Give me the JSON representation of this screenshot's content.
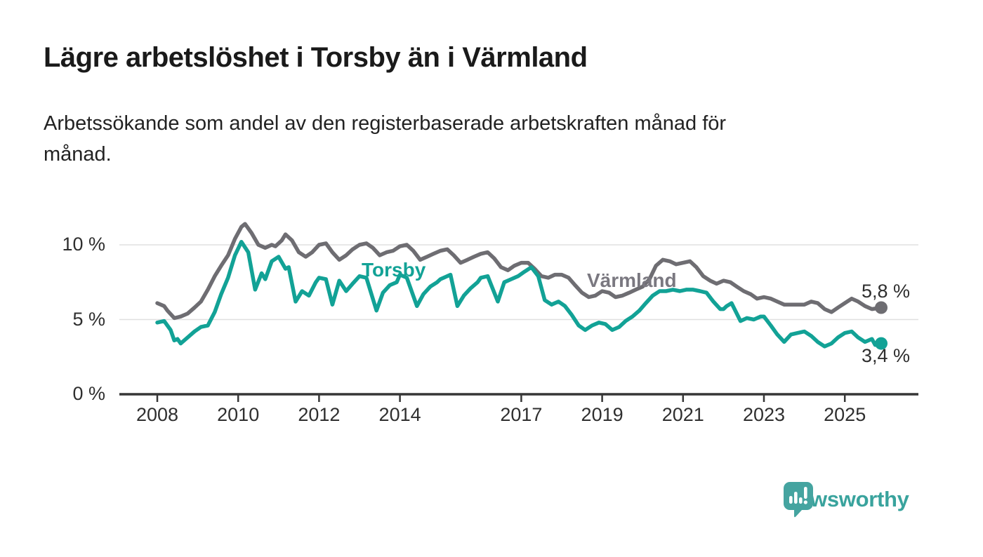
{
  "header": {
    "title": "Lägre arbetslöshet i Torsby än i Värmland",
    "subtitle_lines": [
      "Arbetssökande som andel av den registerbaserade arbetskraften månad för",
      "månad."
    ]
  },
  "colors": {
    "torsby": "#12a296",
    "varmland": "#6e6d72",
    "varmland_label": "#7a7880",
    "grid": "#e0e0e0",
    "axis": "#363636",
    "text": "#2f2f2f",
    "brand_teal": "#45a4a0"
  },
  "chart_data": {
    "type": "line",
    "title": "Lägre arbetslöshet i Torsby än i Värmland",
    "xlabel": "",
    "ylabel": "Arbetssökande som andel av den registerbaserade arbetskraften",
    "unit": "%",
    "grid": "horizontal",
    "x_ticks": [
      "2008",
      "2010",
      "2012",
      "2014",
      "2017",
      "2019",
      "2021",
      "2023",
      "2025"
    ],
    "x_tick_years": [
      2008,
      2010,
      2012,
      2014,
      2017,
      2019,
      2021,
      2023,
      2025
    ],
    "y_ticks": [
      {
        "value": 0,
        "label": "0 %"
      },
      {
        "value": 5,
        "label": "5 %"
      },
      {
        "value": 10,
        "label": "10 %"
      }
    ],
    "x_range": [
      2008.0,
      2025.9
    ],
    "y_range": [
      0,
      12.8
    ],
    "series": [
      {
        "name": "Värmland",
        "color": "#6e6d72",
        "end_label": "5,8 %",
        "end_value": 5.8,
        "points": [
          [
            2008.0,
            6.1
          ],
          [
            2008.17,
            5.9
          ],
          [
            2008.25,
            5.6
          ],
          [
            2008.42,
            5.1
          ],
          [
            2008.58,
            5.2
          ],
          [
            2008.75,
            5.4
          ],
          [
            2008.92,
            5.8
          ],
          [
            2009.08,
            6.2
          ],
          [
            2009.25,
            7.0
          ],
          [
            2009.42,
            7.9
          ],
          [
            2009.58,
            8.6
          ],
          [
            2009.75,
            9.3
          ],
          [
            2009.92,
            10.4
          ],
          [
            2010.08,
            11.2
          ],
          [
            2010.17,
            11.4
          ],
          [
            2010.33,
            10.8
          ],
          [
            2010.5,
            10.0
          ],
          [
            2010.67,
            9.8
          ],
          [
            2010.83,
            10.0
          ],
          [
            2010.92,
            9.9
          ],
          [
            2011.08,
            10.3
          ],
          [
            2011.17,
            10.7
          ],
          [
            2011.33,
            10.3
          ],
          [
            2011.5,
            9.5
          ],
          [
            2011.67,
            9.2
          ],
          [
            2011.83,
            9.5
          ],
          [
            2012.0,
            10.0
          ],
          [
            2012.17,
            10.1
          ],
          [
            2012.33,
            9.5
          ],
          [
            2012.5,
            9.0
          ],
          [
            2012.67,
            9.3
          ],
          [
            2012.83,
            9.7
          ],
          [
            2013.0,
            10.0
          ],
          [
            2013.17,
            10.1
          ],
          [
            2013.33,
            9.8
          ],
          [
            2013.5,
            9.3
          ],
          [
            2013.67,
            9.5
          ],
          [
            2013.83,
            9.6
          ],
          [
            2014.0,
            9.9
          ],
          [
            2014.17,
            10.0
          ],
          [
            2014.33,
            9.6
          ],
          [
            2014.5,
            9.0
          ],
          [
            2014.67,
            9.2
          ],
          [
            2014.83,
            9.4
          ],
          [
            2015.0,
            9.6
          ],
          [
            2015.17,
            9.7
          ],
          [
            2015.33,
            9.3
          ],
          [
            2015.5,
            8.8
          ],
          [
            2015.67,
            9.0
          ],
          [
            2015.83,
            9.2
          ],
          [
            2016.0,
            9.4
          ],
          [
            2016.17,
            9.5
          ],
          [
            2016.33,
            9.1
          ],
          [
            2016.5,
            8.5
          ],
          [
            2016.67,
            8.3
          ],
          [
            2016.83,
            8.6
          ],
          [
            2017.0,
            8.8
          ],
          [
            2017.17,
            8.8
          ],
          [
            2017.33,
            8.4
          ],
          [
            2017.5,
            7.9
          ],
          [
            2017.67,
            7.8
          ],
          [
            2017.83,
            8.0
          ],
          [
            2018.0,
            8.0
          ],
          [
            2018.17,
            7.8
          ],
          [
            2018.33,
            7.3
          ],
          [
            2018.5,
            6.8
          ],
          [
            2018.67,
            6.5
          ],
          [
            2018.83,
            6.6
          ],
          [
            2019.0,
            6.9
          ],
          [
            2019.17,
            6.8
          ],
          [
            2019.33,
            6.5
          ],
          [
            2019.5,
            6.6
          ],
          [
            2019.67,
            6.8
          ],
          [
            2019.83,
            7.0
          ],
          [
            2020.0,
            7.2
          ],
          [
            2020.17,
            7.7
          ],
          [
            2020.33,
            8.6
          ],
          [
            2020.5,
            9.0
          ],
          [
            2020.67,
            8.9
          ],
          [
            2020.83,
            8.7
          ],
          [
            2021.0,
            8.8
          ],
          [
            2021.17,
            8.9
          ],
          [
            2021.33,
            8.5
          ],
          [
            2021.5,
            7.9
          ],
          [
            2021.67,
            7.6
          ],
          [
            2021.83,
            7.4
          ],
          [
            2022.0,
            7.6
          ],
          [
            2022.17,
            7.5
          ],
          [
            2022.33,
            7.2
          ],
          [
            2022.5,
            6.9
          ],
          [
            2022.67,
            6.7
          ],
          [
            2022.83,
            6.4
          ],
          [
            2023.0,
            6.5
          ],
          [
            2023.17,
            6.4
          ],
          [
            2023.33,
            6.2
          ],
          [
            2023.5,
            6.0
          ],
          [
            2023.67,
            6.0
          ],
          [
            2023.83,
            6.0
          ],
          [
            2024.0,
            6.0
          ],
          [
            2024.17,
            6.2
          ],
          [
            2024.33,
            6.1
          ],
          [
            2024.5,
            5.7
          ],
          [
            2024.67,
            5.5
          ],
          [
            2024.83,
            5.8
          ],
          [
            2025.0,
            6.1
          ],
          [
            2025.17,
            6.4
          ],
          [
            2025.33,
            6.2
          ],
          [
            2025.5,
            5.9
          ],
          [
            2025.67,
            5.7
          ],
          [
            2025.9,
            5.8
          ]
        ]
      },
      {
        "name": "Torsby",
        "color": "#12a296",
        "end_label": "3,4 %",
        "end_value": 3.4,
        "points": [
          [
            2008.0,
            4.8
          ],
          [
            2008.17,
            4.9
          ],
          [
            2008.33,
            4.3
          ],
          [
            2008.42,
            3.6
          ],
          [
            2008.5,
            3.7
          ],
          [
            2008.58,
            3.4
          ],
          [
            2008.75,
            3.8
          ],
          [
            2008.92,
            4.2
          ],
          [
            2009.08,
            4.5
          ],
          [
            2009.25,
            4.6
          ],
          [
            2009.42,
            5.5
          ],
          [
            2009.58,
            6.7
          ],
          [
            2009.75,
            7.8
          ],
          [
            2009.92,
            9.3
          ],
          [
            2010.08,
            10.2
          ],
          [
            2010.25,
            9.5
          ],
          [
            2010.42,
            7.0
          ],
          [
            2010.58,
            8.1
          ],
          [
            2010.67,
            7.7
          ],
          [
            2010.83,
            8.9
          ],
          [
            2011.0,
            9.2
          ],
          [
            2011.17,
            8.4
          ],
          [
            2011.25,
            8.5
          ],
          [
            2011.42,
            6.2
          ],
          [
            2011.58,
            6.9
          ],
          [
            2011.75,
            6.6
          ],
          [
            2011.92,
            7.5
          ],
          [
            2012.0,
            7.8
          ],
          [
            2012.17,
            7.7
          ],
          [
            2012.33,
            6.0
          ],
          [
            2012.5,
            7.6
          ],
          [
            2012.67,
            6.9
          ],
          [
            2012.83,
            7.4
          ],
          [
            2013.0,
            7.9
          ],
          [
            2013.17,
            7.8
          ],
          [
            2013.42,
            5.6
          ],
          [
            2013.58,
            6.8
          ],
          [
            2013.75,
            7.3
          ],
          [
            2013.92,
            7.5
          ],
          [
            2014.0,
            8.0
          ],
          [
            2014.17,
            7.8
          ],
          [
            2014.42,
            5.9
          ],
          [
            2014.58,
            6.7
          ],
          [
            2014.75,
            7.2
          ],
          [
            2014.92,
            7.5
          ],
          [
            2015.0,
            7.7
          ],
          [
            2015.25,
            8.0
          ],
          [
            2015.42,
            5.9
          ],
          [
            2015.58,
            6.6
          ],
          [
            2015.75,
            7.1
          ],
          [
            2015.92,
            7.5
          ],
          [
            2016.0,
            7.8
          ],
          [
            2016.17,
            7.9
          ],
          [
            2016.42,
            6.2
          ],
          [
            2016.58,
            7.5
          ],
          [
            2016.75,
            7.7
          ],
          [
            2016.92,
            7.9
          ],
          [
            2017.08,
            8.2
          ],
          [
            2017.25,
            8.5
          ],
          [
            2017.42,
            7.9
          ],
          [
            2017.58,
            6.3
          ],
          [
            2017.75,
            6.0
          ],
          [
            2017.92,
            6.2
          ],
          [
            2018.08,
            5.9
          ],
          [
            2018.25,
            5.3
          ],
          [
            2018.42,
            4.6
          ],
          [
            2018.58,
            4.3
          ],
          [
            2018.75,
            4.6
          ],
          [
            2018.92,
            4.8
          ],
          [
            2019.08,
            4.7
          ],
          [
            2019.25,
            4.3
          ],
          [
            2019.42,
            4.5
          ],
          [
            2019.58,
            4.9
          ],
          [
            2019.75,
            5.2
          ],
          [
            2019.92,
            5.6
          ],
          [
            2020.08,
            6.1
          ],
          [
            2020.25,
            6.6
          ],
          [
            2020.42,
            6.9
          ],
          [
            2020.58,
            6.9
          ],
          [
            2020.75,
            7.0
          ],
          [
            2020.92,
            6.9
          ],
          [
            2021.08,
            7.0
          ],
          [
            2021.25,
            7.0
          ],
          [
            2021.42,
            6.9
          ],
          [
            2021.58,
            6.8
          ],
          [
            2021.75,
            6.2
          ],
          [
            2021.92,
            5.7
          ],
          [
            2022.0,
            5.7
          ],
          [
            2022.08,
            5.9
          ],
          [
            2022.2,
            6.1
          ],
          [
            2022.42,
            4.9
          ],
          [
            2022.58,
            5.1
          ],
          [
            2022.75,
            5.0
          ],
          [
            2022.92,
            5.2
          ],
          [
            2023.0,
            5.2
          ],
          [
            2023.17,
            4.6
          ],
          [
            2023.33,
            4.0
          ],
          [
            2023.5,
            3.5
          ],
          [
            2023.67,
            4.0
          ],
          [
            2023.83,
            4.1
          ],
          [
            2024.0,
            4.2
          ],
          [
            2024.17,
            3.9
          ],
          [
            2024.33,
            3.5
          ],
          [
            2024.5,
            3.2
          ],
          [
            2024.67,
            3.4
          ],
          [
            2024.83,
            3.8
          ],
          [
            2025.0,
            4.1
          ],
          [
            2025.17,
            4.2
          ],
          [
            2025.33,
            3.8
          ],
          [
            2025.5,
            3.5
          ],
          [
            2025.67,
            3.7
          ],
          [
            2025.75,
            3.3
          ],
          [
            2025.9,
            3.4
          ]
        ]
      }
    ],
    "series_inline_labels": [
      {
        "series": "Torsby",
        "text": "Torsby"
      },
      {
        "series": "Värmland",
        "text": "Värmland"
      }
    ]
  },
  "footer": {
    "brand": "Newsworthy"
  }
}
